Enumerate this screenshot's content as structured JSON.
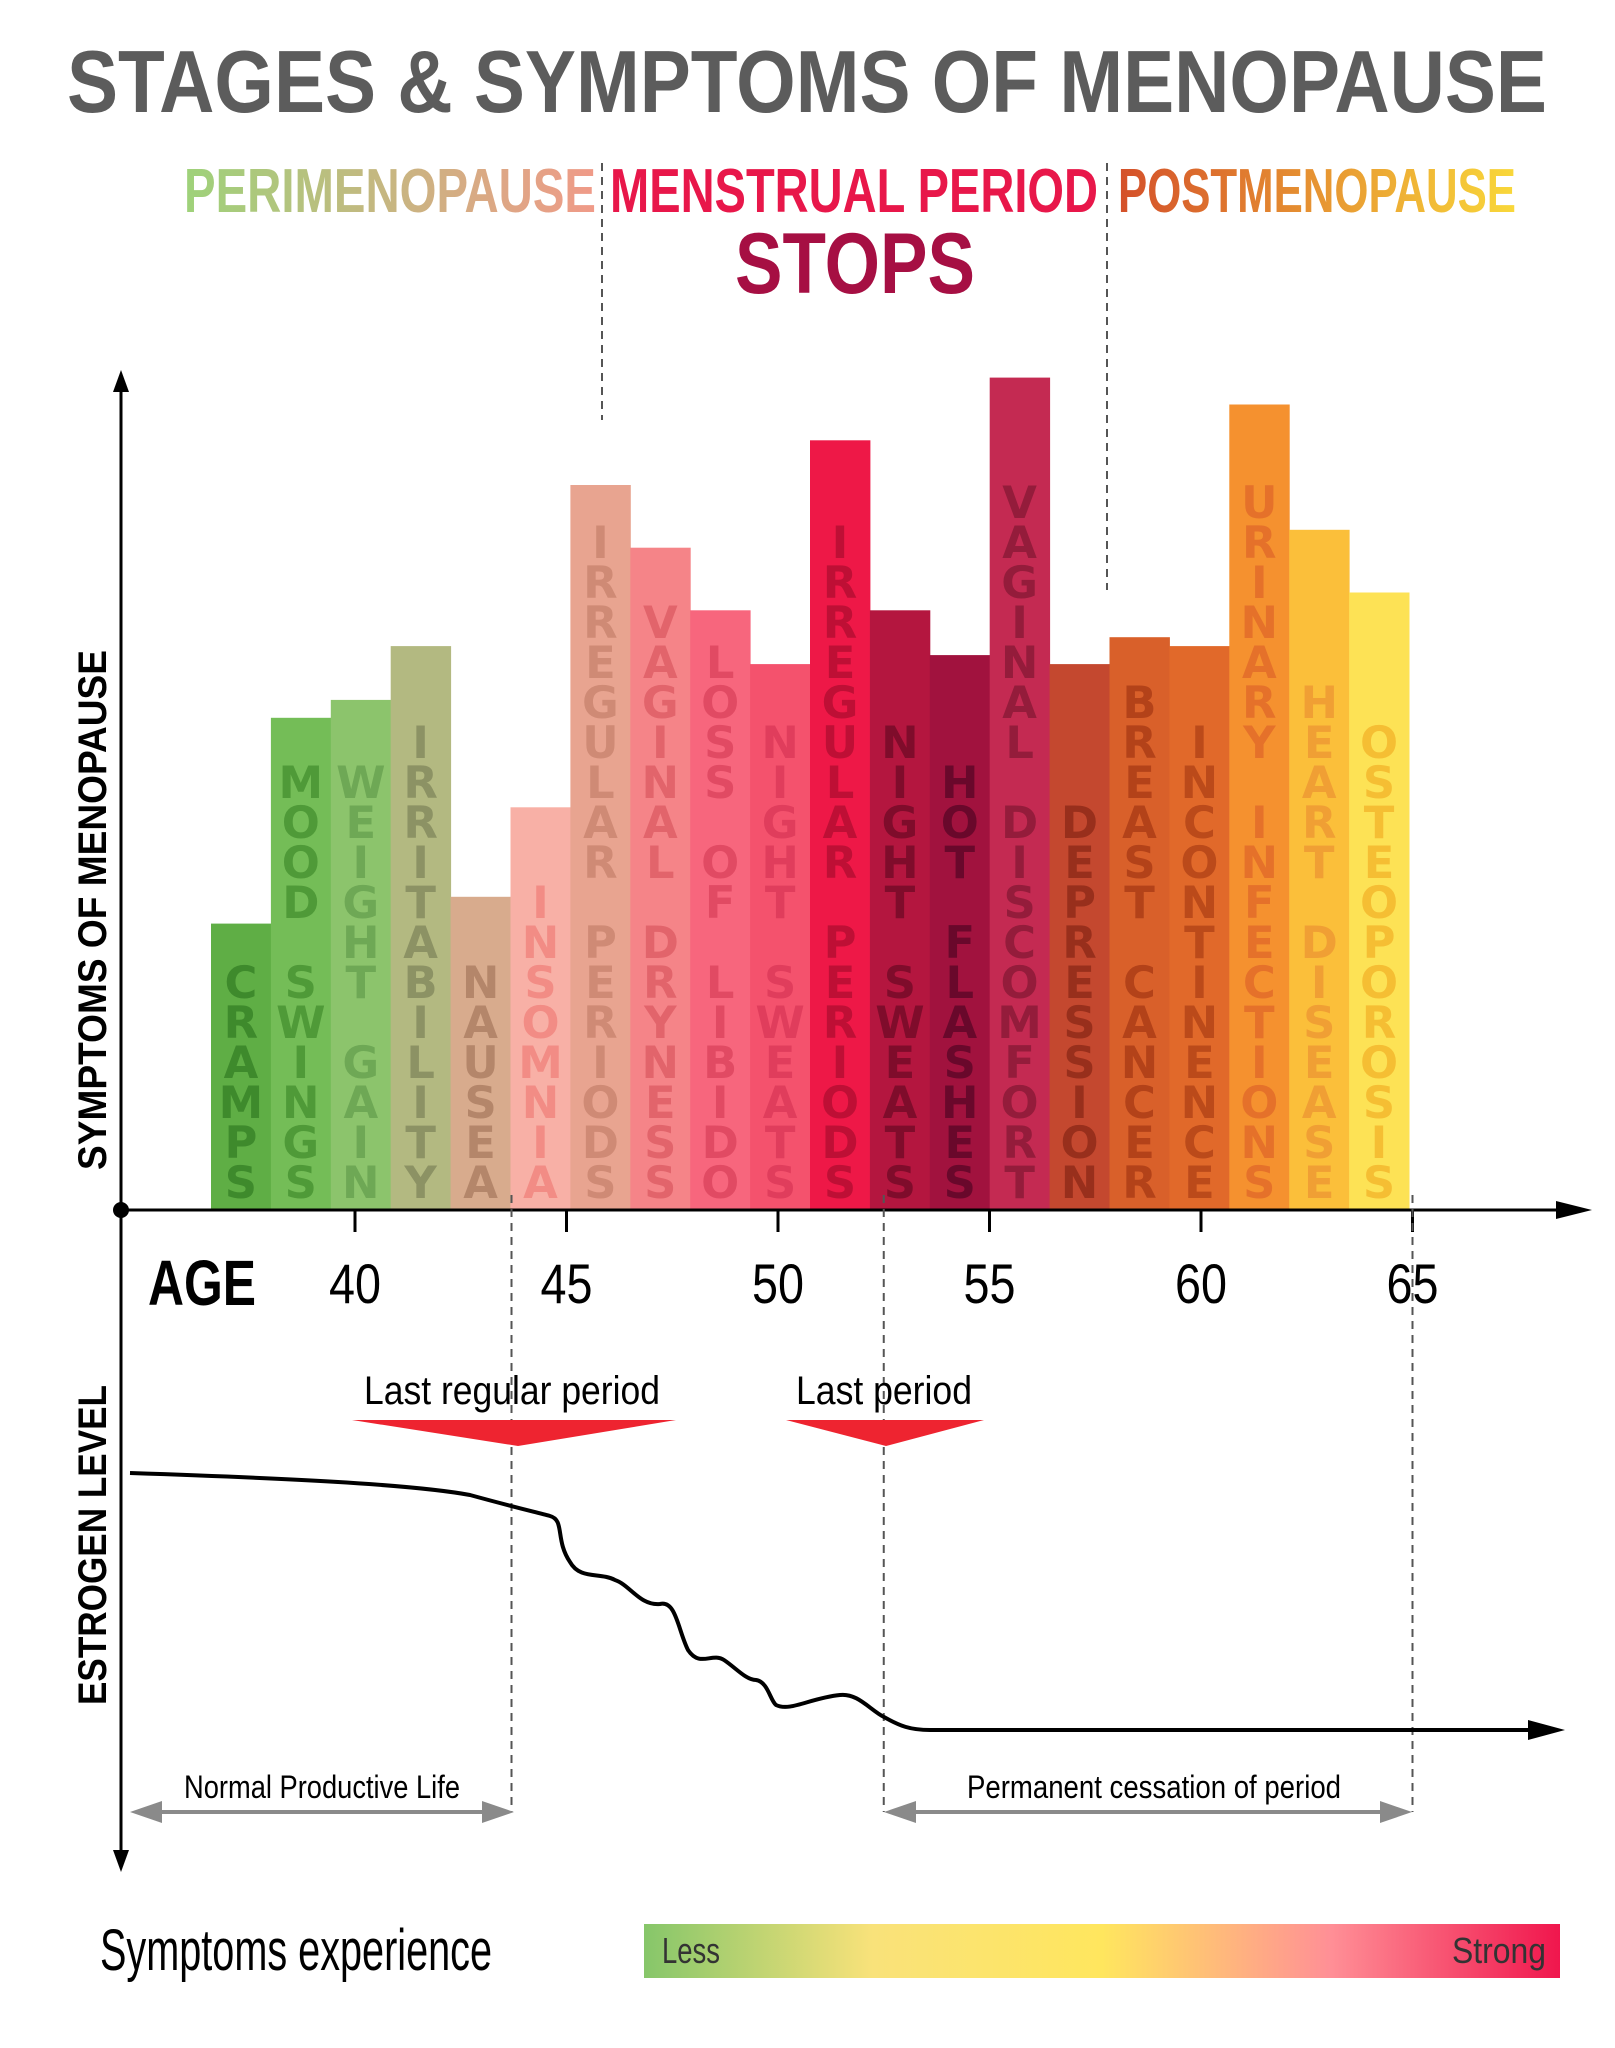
{
  "title": "STAGES & SYMPTOMS OF MENOPAUSE",
  "stages": {
    "peri": "PERIMENOPAUSE",
    "mid_line1": "MENSTRUAL PERIOD",
    "mid_line2": "STOPS",
    "post": "POSTMENOPAUSE"
  },
  "stage_colors": {
    "peri_start": "#9ed27a",
    "peri_end": "#f09a88",
    "mid": "#e8174a",
    "mid_stops": "#a60f43",
    "post_start": "#d4502a",
    "post_end": "#f9d83a"
  },
  "chart_data": {
    "type": "bar",
    "ylabel": "SYMPTOMS OF MENOPAUSE",
    "xlabel": "AGE",
    "x_ticks": [
      40,
      45,
      50,
      55,
      60,
      65
    ],
    "xlim": [
      37.5,
      67
    ],
    "categories": [
      "CRAMPS",
      "MOOD SWINGS",
      "WEIGHT GAIN",
      "IRRITABILITY",
      "NAUSEA",
      "INSOMNIA",
      "IRREGULAR PERIODS",
      "VAGINAL DRYNESS",
      "LOSS OF LIBIDO",
      "NIGHT SWEATS",
      "IRREGULAR PERIODS",
      "NIGHT SWEATS",
      "HOT FLASHES",
      "VAGINAL DISCOMFORT",
      "DEPRESSION",
      "BREAST CANCER",
      "INCONTINENCE",
      "URINARY INFECTIONS",
      "HEART DISEASE",
      "OSTEOPOROSIS"
    ],
    "values": [
      32,
      55,
      57,
      63,
      35,
      45,
      81,
      74,
      67,
      61,
      86,
      67,
      62,
      93,
      61,
      64,
      63,
      90,
      76,
      69
    ],
    "bar_colors": [
      "#5fae45",
      "#74bd57",
      "#8cc46c",
      "#b3b981",
      "#d8ab8d",
      "#f8b0a6",
      "#e8a490",
      "#f58488",
      "#f7667d",
      "#f4526d",
      "#ee1847",
      "#b4163f",
      "#a1123e",
      "#c42a52",
      "#c4482f",
      "#d9602a",
      "#e1692a",
      "#f5912f",
      "#fbbf3a",
      "#fde255"
    ],
    "label_colors": [
      "#3e8a2c",
      "#4f9a38",
      "#6ea855",
      "#8c9264",
      "#b4866a",
      "#f28c85",
      "#cf8a75",
      "#e2646b",
      "#e14a63",
      "#e03d5c",
      "#be0f35",
      "#7f0c2b",
      "#69082b",
      "#941c3b",
      "#982f1c",
      "#b34219",
      "#bb4a1a",
      "#e5712a",
      "#f09f34",
      "#f5be33"
    ],
    "ylim": [
      0,
      100
    ]
  },
  "markers": {
    "last_regular_period": "Last regular period",
    "last_period": "Last period",
    "last_regular_age": 43.7,
    "last_period_age": 52.5
  },
  "estrogen": {
    "ylabel": "ESTROGEN LEVEL",
    "normal_label": "Normal Productive Life",
    "permanent_label": "Permanent cessation of period",
    "range_end_age": 65
  },
  "legend": {
    "title": "Symptoms experience",
    "less": "Less",
    "strong": "Strong",
    "gradient": [
      "#86c66a",
      "#f9e27a",
      "#ffe65e",
      "#ff8f96",
      "#f0164d"
    ]
  }
}
